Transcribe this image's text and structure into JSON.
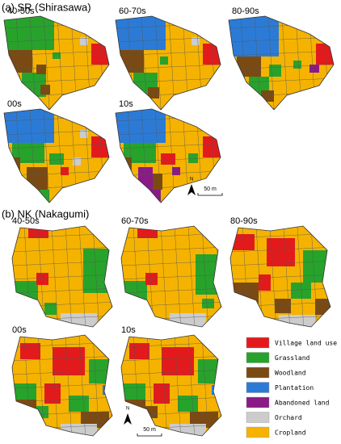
{
  "panel_a": {
    "title": "(a) SR (Shirasawa)",
    "periods": [
      "40-50s",
      "60-70s",
      "80-90s",
      "00s",
      "10s"
    ],
    "north": "N",
    "scale": "50 m"
  },
  "panel_b": {
    "title": "(b) NK (Nakagumi)",
    "periods": [
      "40-50s",
      "60-70s",
      "80-90s",
      "00s",
      "10s"
    ],
    "north": "N",
    "scale": "50 m"
  },
  "legend": [
    {
      "label": "Village land use",
      "color": "#e31a1c"
    },
    {
      "label": "Grassland",
      "color": "#27a32b"
    },
    {
      "label": "Woodland",
      "color": "#7b4a12"
    },
    {
      "label": "Plantation",
      "color": "#2b7bd6"
    },
    {
      "label": "Abandoned land",
      "color": "#8a1a88"
    },
    {
      "label": "Orchard",
      "color": "#cccccc"
    },
    {
      "label": "Cropland",
      "color": "#f5b300"
    }
  ]
}
